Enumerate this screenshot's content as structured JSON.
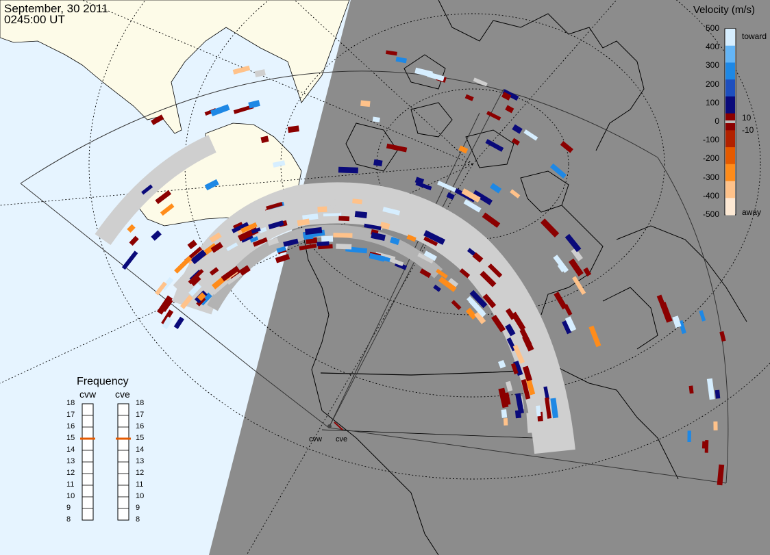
{
  "header": {
    "date": "September, 30 2011",
    "time": "0245:00 UT"
  },
  "velocity_scale": {
    "title": "Velocity (m/s)",
    "ticks": [
      "500",
      "400",
      "300",
      "200",
      "100",
      "0",
      "-100",
      "-200",
      "-300",
      "-400",
      "-500"
    ],
    "inner_ticks": [
      "10",
      "-10"
    ],
    "toward_label": "toward",
    "away_label": "away",
    "colors": [
      "#fde9d4",
      "#ffc28a",
      "#ff8c1a",
      "#e55a00",
      "#b22200",
      "#8b0000",
      "#0a0a7a",
      "#1e4fbf",
      "#1e88e5",
      "#64b5f6",
      "#d6eeff"
    ]
  },
  "frequency": {
    "title": "Frequency",
    "radars": [
      "cvw",
      "cve"
    ],
    "ticks": [
      "18",
      "17",
      "16",
      "15",
      "14",
      "13",
      "12",
      "11",
      "10",
      "9",
      "8"
    ],
    "current_mhz": {
      "cvw": 15,
      "cve": 15
    }
  },
  "radar_sites": {
    "cvw": "cvw",
    "cve": "cve"
  },
  "colors": {
    "night": "#8c8c8c",
    "day_ocean": "#e6f4ff",
    "day_land": "#fdfbe8",
    "gs_scatter": "#cfcfcf",
    "gs_scatter_dark": "#a8a8a8"
  }
}
